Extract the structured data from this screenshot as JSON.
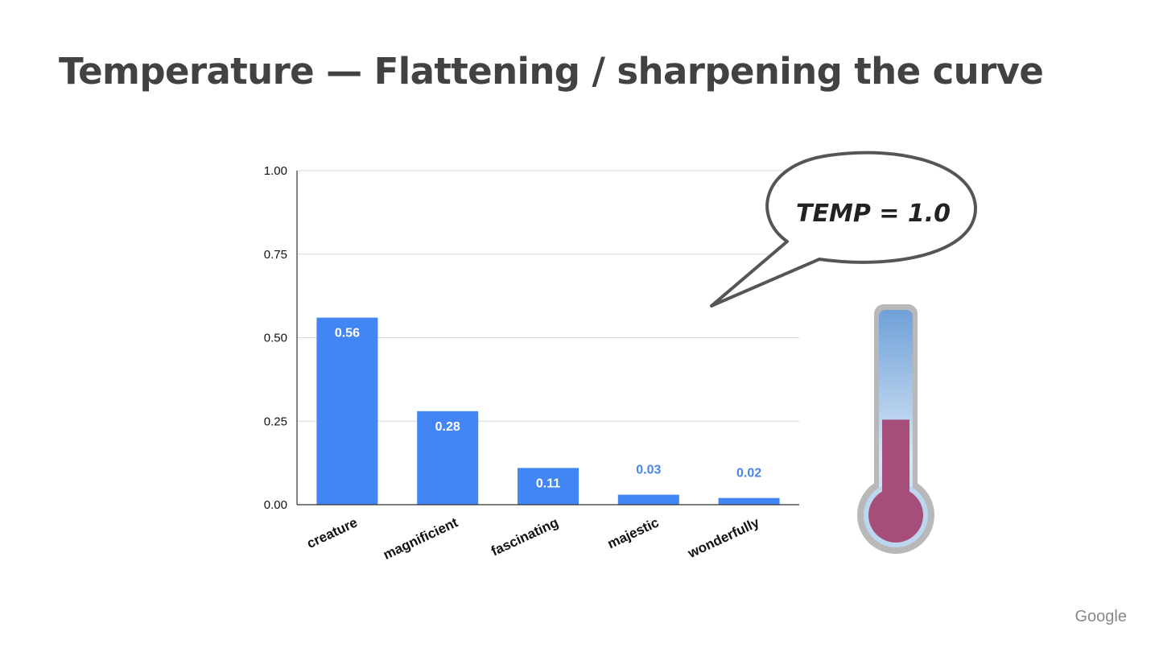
{
  "slide": {
    "title": "Temperature — Flattening / sharpening the curve",
    "footer": "Google"
  },
  "bubble": {
    "text": "TEMP = 1.0"
  },
  "thermometer": {
    "level_fraction": 0.37
  },
  "colors": {
    "bar": "#4285f4",
    "label_outside": "#4a86e8",
    "mercury": "#a64d79",
    "tube": "#bfd6ee"
  },
  "chart_data": {
    "type": "bar",
    "categories": [
      "creature",
      "magnificient",
      "fascinating",
      "majestic",
      "wonderfully"
    ],
    "values": [
      0.56,
      0.28,
      0.11,
      0.03,
      0.02
    ],
    "value_labels": [
      "0.56",
      "0.28",
      "0.11",
      "0.03",
      "0.02"
    ],
    "yticks": [
      "0.00",
      "0.25",
      "0.50",
      "0.75",
      "1.00"
    ],
    "ylim": [
      0,
      1
    ],
    "grid": true,
    "legend": "none"
  }
}
